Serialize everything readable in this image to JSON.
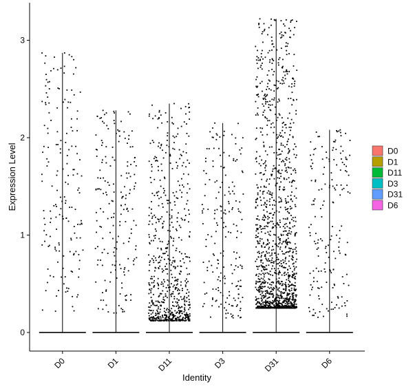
{
  "chart_data": {
    "type": "violin",
    "title": "",
    "xlabel": "Identity",
    "ylabel": "Expression Level",
    "ylim": [
      -0.18,
      3.35
    ],
    "yticks": [
      0,
      1,
      2,
      3
    ],
    "grid": false,
    "legend_position": "right",
    "categories": [
      "D0",
      "D1",
      "D11",
      "D3",
      "D31",
      "D6"
    ],
    "legend": [
      {
        "label": "D0",
        "color": "#F8766D"
      },
      {
        "label": "D1",
        "color": "#B79F00"
      },
      {
        "label": "D11",
        "color": "#00BA38"
      },
      {
        "label": "D3",
        "color": "#00BFC4"
      },
      {
        "label": "D31",
        "color": "#619CFF"
      },
      {
        "label": "D6",
        "color": "#F564E3"
      }
    ],
    "series": [
      {
        "group": "D0",
        "max": 2.87,
        "nonzero_points": 175,
        "nonzero_range": [
          0.2,
          2.87
        ]
      },
      {
        "group": "D1",
        "max": 2.28,
        "nonzero_points": 190,
        "nonzero_range": [
          0.2,
          2.28
        ]
      },
      {
        "group": "D11",
        "max": 2.35,
        "nonzero_points": 700,
        "nonzero_range": [
          0.12,
          2.35
        ]
      },
      {
        "group": "D3",
        "max": 2.15,
        "nonzero_points": 200,
        "nonzero_range": [
          0.15,
          2.15
        ]
      },
      {
        "group": "D31",
        "max": 3.22,
        "nonzero_points": 1400,
        "nonzero_range": [
          0.25,
          3.22
        ]
      },
      {
        "group": "D6",
        "max": 2.08,
        "nonzero_points": 180,
        "nonzero_range": [
          0.15,
          2.08
        ]
      }
    ]
  }
}
